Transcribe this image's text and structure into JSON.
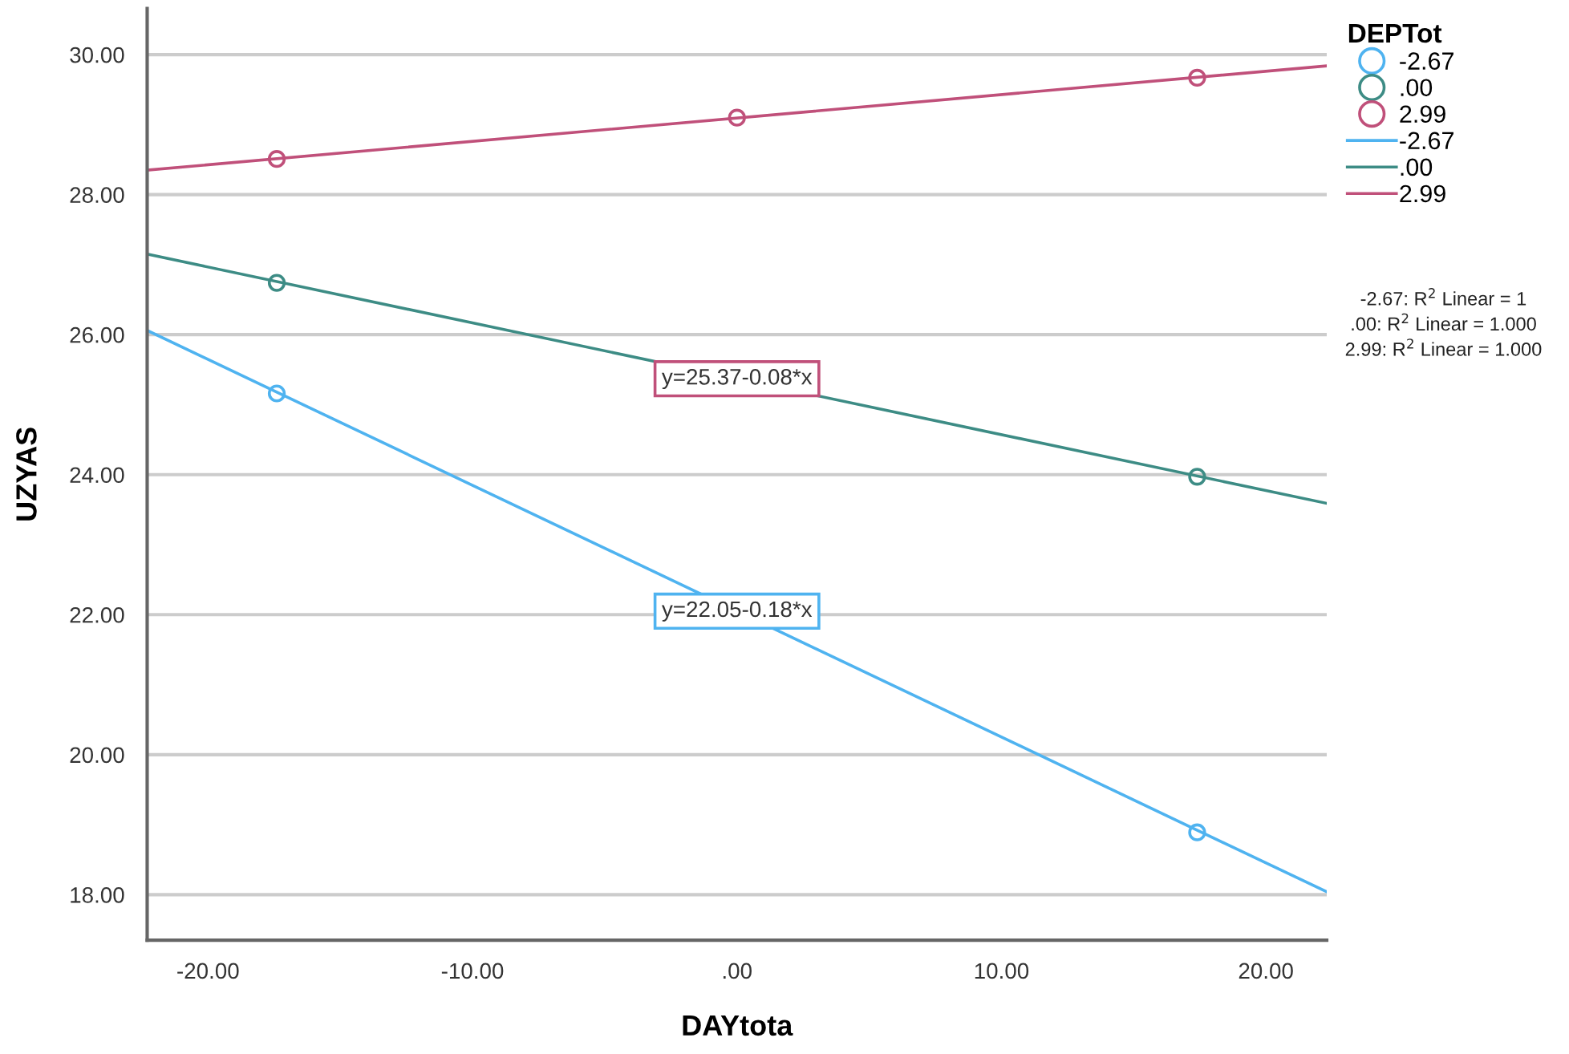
{
  "chart_data": {
    "type": "scatter",
    "xlabel": "DAYtota",
    "ylabel": "UZYAS",
    "legend_title": "DEPTot",
    "legend": "right",
    "grid": "y",
    "xlim": [
      -22.3,
      22.3
    ],
    "ylim": [
      17.35,
      30.66
    ],
    "xticks": [
      {
        "value": -20,
        "label": "-20.00"
      },
      {
        "value": -10,
        "label": "-10.00"
      },
      {
        "value": 0,
        "label": ".00"
      },
      {
        "value": 10,
        "label": "10.00"
      },
      {
        "value": 20,
        "label": "20.00"
      }
    ],
    "yticks": [
      {
        "value": 18,
        "label": "18.00"
      },
      {
        "value": 20,
        "label": "20.00"
      },
      {
        "value": 22,
        "label": "22.00"
      },
      {
        "value": 24,
        "label": "24.00"
      },
      {
        "value": 26,
        "label": "26.00"
      },
      {
        "value": 28,
        "label": "28.00"
      },
      {
        "value": 30,
        "label": "30.00"
      }
    ],
    "series": [
      {
        "name": "-2.67",
        "marker": "circle",
        "color": "#4fb3f0",
        "x": [
          -17.4,
          17.4
        ],
        "values": [
          25.16,
          18.89
        ]
      },
      {
        "name": ".00",
        "marker": "circle",
        "color": "#3d8c85",
        "x": [
          -17.4,
          17.4
        ],
        "values": [
          26.74,
          23.97
        ]
      },
      {
        "name": "2.99",
        "marker": "circle",
        "color": "#c0507a",
        "x": [
          -17.4,
          0,
          17.4
        ],
        "values": [
          28.51,
          29.1,
          29.67
        ]
      },
      {
        "name": "-2.67",
        "type": "line",
        "color": "#4fb3f0",
        "x": [
          -22.3,
          22.3
        ],
        "values": [
          26.06,
          18.04
        ]
      },
      {
        "name": ".00",
        "type": "line",
        "color": "#3d8c85",
        "x": [
          -22.3,
          22.3
        ],
        "values": [
          27.15,
          23.59
        ]
      },
      {
        "name": "2.99",
        "type": "line",
        "color": "#c0507a",
        "x": [
          -22.3,
          22.3
        ],
        "values": [
          28.35,
          29.84
        ]
      }
    ],
    "annotations": [
      {
        "text": "y=25.37-0.08*x",
        "x": 0,
        "y": 25.37
      },
      {
        "text": "y=22.05-0.18*x",
        "x": 0,
        "y": 22.05
      },
      "-2.67: R$^{2}$ Linear = 1",
      ".00: R$^{2}$ Linear = 1.000",
      "2.99: R$^{2}$ Linear = 1.000"
    ]
  }
}
